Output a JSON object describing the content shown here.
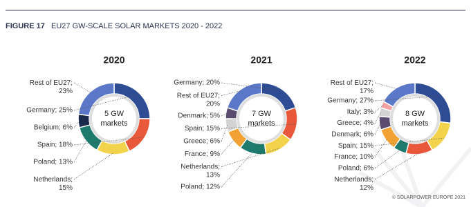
{
  "figure_label": "FIGURE 17",
  "title": "EU27 GW-SCALE SOLAR MARKETS 2020 - 2022",
  "source": "© SOLARPOWER EUROPE 2021",
  "chart_data": [
    {
      "type": "donut",
      "title": "2020",
      "center_lines": [
        "5 GW",
        "markets"
      ],
      "categories": [
        "Germany",
        "Spain",
        "Netherlands",
        "Poland",
        "Belgium",
        "Rest of EU27"
      ],
      "values": [
        25,
        18,
        15,
        13,
        6,
        23
      ],
      "value_labels": [
        "Germany; 25%",
        "Spain; 18%",
        "Netherlands; 15%",
        "Poland; 13%",
        "Belgium; 6%",
        "Rest of EU27; 23%"
      ],
      "colors": [
        "#2d4c94",
        "#e9583a",
        "#f3d34c",
        "#1d7a6c",
        "#1b2a4b",
        "#5b78c8"
      ]
    },
    {
      "type": "donut",
      "title": "2021",
      "center_lines": [
        "7 GW",
        "markets"
      ],
      "categories": [
        "Germany",
        "Spain",
        "Netherlands",
        "Poland",
        "France",
        "Greece",
        "Denmark",
        "Rest of EU27"
      ],
      "values": [
        20,
        15,
        13,
        12,
        9,
        6,
        5,
        20
      ],
      "value_labels": [
        "Germany; 20%",
        "Spain; 15%",
        "Netherlands; 13%",
        "Poland; 12%",
        "France; 9%",
        "Greece; 6%",
        "Denmark; 5%",
        "Rest of EU27; 20%"
      ],
      "colors": [
        "#2d4c94",
        "#e9583a",
        "#f3d34c",
        "#1d7a6c",
        "#f2a232",
        "#d3d3d3",
        "#5b4b6e",
        "#5b78c8"
      ]
    },
    {
      "type": "donut",
      "title": "2022",
      "center_lines": [
        "8 GW",
        "markets"
      ],
      "categories": [
        "Germany",
        "Spain",
        "Netherlands",
        "Poland",
        "France",
        "Denmark",
        "Greece",
        "Italy",
        "Rest of EU27"
      ],
      "values": [
        27,
        15,
        12,
        6,
        10,
        6,
        4,
        3,
        17
      ],
      "value_labels": [
        "Germany; 27%",
        "Spain; 15%",
        "Netherlands; 12%",
        "Poland; 6%",
        "France; 10%",
        "Denmark; 6%",
        "Greece; 4%",
        "Italy; 3%",
        "Rest of EU27; 17%"
      ],
      "colors": [
        "#2d4c94",
        "#f3d34c",
        "#e9583a",
        "#1d7a6c",
        "#f2a232",
        "#5b4b6e",
        "#d3d3d3",
        "#f3a3a3",
        "#5b78c8"
      ]
    }
  ]
}
